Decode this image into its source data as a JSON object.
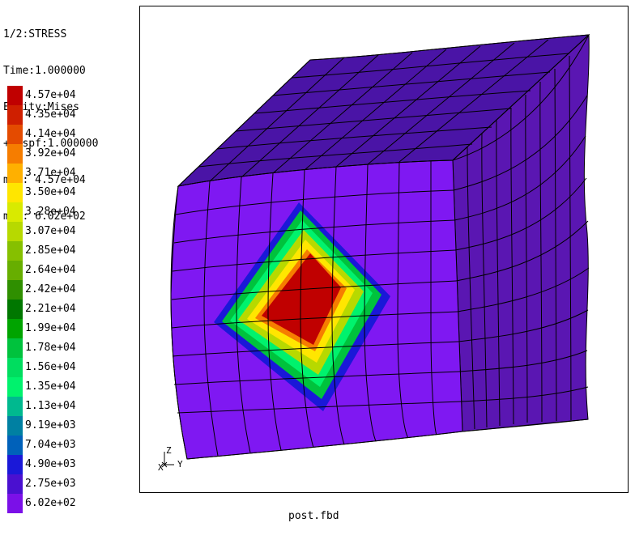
{
  "info": {
    "line1": "1/2:STRESS",
    "line2": "Time:1.000000",
    "line3": "Entity:Mises",
    "line4": "+Dispf:1.000000",
    "line5": "max: 4.57e+04",
    "line6": "min: 6.02e+02"
  },
  "legend": {
    "items": [
      {
        "label": "4.57e+04",
        "color": "#c00000"
      },
      {
        "label": "4.35e+04",
        "color": "#cf1f00"
      },
      {
        "label": "4.14e+04",
        "color": "#e44b00"
      },
      {
        "label": "3.92e+04",
        "color": "#f67d00"
      },
      {
        "label": "3.71e+04",
        "color": "#ffb000"
      },
      {
        "label": "3.50e+04",
        "color": "#ffe600"
      },
      {
        "label": "3.28e+04",
        "color": "#d9ea00"
      },
      {
        "label": "3.07e+04",
        "color": "#b7d900"
      },
      {
        "label": "2.85e+04",
        "color": "#86c000"
      },
      {
        "label": "2.64e+04",
        "color": "#67ae00"
      },
      {
        "label": "2.42e+04",
        "color": "#2f8f00"
      },
      {
        "label": "2.21e+04",
        "color": "#007700"
      },
      {
        "label": "1.99e+04",
        "color": "#00a400"
      },
      {
        "label": "1.78e+04",
        "color": "#00c23d"
      },
      {
        "label": "1.56e+04",
        "color": "#00dd5f"
      },
      {
        "label": "1.35e+04",
        "color": "#00f26d"
      },
      {
        "label": "1.13e+04",
        "color": "#00b98f"
      },
      {
        "label": "9.19e+03",
        "color": "#0080a2"
      },
      {
        "label": "7.04e+03",
        "color": "#0061ba"
      },
      {
        "label": "4.90e+03",
        "color": "#1a18d8"
      },
      {
        "label": "2.75e+03",
        "color": "#4a10d0"
      },
      {
        "label": "6.02e+02",
        "color": "#7b10e8"
      }
    ]
  },
  "viewport": {
    "mesh_color": "#000000",
    "top_face_color": "#4a14a6",
    "side_face_color": "#5a16b2",
    "front_face_color": "#7f18f2",
    "hotspot_red": "#c00000",
    "hotspot_orange": "#f67d00",
    "hotspot_yellow": "#ffe600",
    "hotspot_green": "#00dd5f",
    "hotspot_blue": "#1a18d8"
  },
  "axis_triad": {
    "z_label": "Z",
    "x_label": "X",
    "y_label": "Y"
  },
  "footer": {
    "filename": "post.fbd"
  }
}
